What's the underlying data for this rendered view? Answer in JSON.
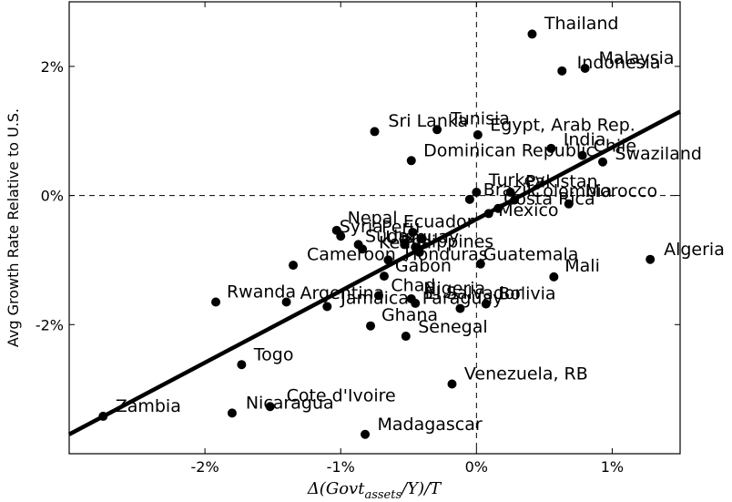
{
  "chart_data": {
    "type": "scatter",
    "xlabel": "Δ(Govt_assets/Y)/T",
    "xlabel_main": "Δ(Govt",
    "xlabel_sub": "assets",
    "xlabel_tail": "/Y)/T",
    "ylabel": "Avg Growth Rate Relative to U.S.",
    "xlim": [
      -3.0,
      1.5
    ],
    "ylim": [
      -4.0,
      3.0
    ],
    "x_ticks": [
      {
        "v": -2,
        "label": "-2%"
      },
      {
        "v": -1,
        "label": "-1%"
      },
      {
        "v": 0,
        "label": "0%"
      },
      {
        "v": 1,
        "label": "1%"
      }
    ],
    "y_ticks": [
      {
        "v": 2,
        "label": "2%"
      },
      {
        "v": 0,
        "label": "0%"
      },
      {
        "v": -2,
        "label": "-2%"
      }
    ],
    "reference_lines": {
      "x": 0,
      "y": 0,
      "style": "dashed"
    },
    "fit_line": [
      {
        "x": -3.0,
        "y": -3.7
      },
      {
        "x": 1.5,
        "y": 1.3
      }
    ],
    "points": [
      {
        "label": "Thailand",
        "x": 0.41,
        "y": 2.5
      },
      {
        "label": "Malaysia",
        "x": 0.8,
        "y": 1.97
      },
      {
        "label": "Indonesia",
        "x": 0.63,
        "y": 1.93
      },
      {
        "label": "Tunisia",
        "x": -0.29,
        "y": 1.02
      },
      {
        "label": "Sri Lanka",
        "x": -0.75,
        "y": 0.99
      },
      {
        "label": "Egypt, Arab Rep.",
        "x": 0.01,
        "y": 0.94
      },
      {
        "label": "India",
        "x": 0.55,
        "y": 0.73
      },
      {
        "label": "Chile",
        "x": 0.78,
        "y": 0.62
      },
      {
        "label": "Swaziland",
        "x": 0.93,
        "y": 0.52
      },
      {
        "label": "Dominican Republic",
        "x": -0.48,
        "y": 0.54
      },
      {
        "label": "Turkey",
        "x": 0.0,
        "y": 0.05
      },
      {
        "label": "Pakistan",
        "x": 0.25,
        "y": 0.05
      },
      {
        "label": "Brazil",
        "x": -0.05,
        "y": -0.06
      },
      {
        "label": "Colombia",
        "x": 0.28,
        "y": -0.07
      },
      {
        "label": "Morocco",
        "x": 0.68,
        "y": -0.13
      },
      {
        "label": "Costa Rica",
        "x": 0.16,
        "y": -0.2
      },
      {
        "label": "Mexico",
        "x": 0.09,
        "y": -0.28
      },
      {
        "label": "Nepal",
        "x": -1.03,
        "y": -0.54
      },
      {
        "label": "Ecuador",
        "x": -0.47,
        "y": -0.57
      },
      {
        "label": "Syria",
        "x": -1.0,
        "y": -0.63
      },
      {
        "label": "Peru",
        "x": -0.4,
        "y": -0.67
      },
      {
        "label": "Uruguay",
        "x": -0.53,
        "y": -0.76
      },
      {
        "label": "Philippines",
        "x": -0.45,
        "y": -0.8
      },
      {
        "label": "Sudan",
        "x": -0.87,
        "y": -0.76
      },
      {
        "label": "Honduras",
        "x": -0.84,
        "y": -0.83
      },
      {
        "label": "Kenya",
        "x": -0.42,
        "y": -0.88
      },
      {
        "label": "Cameroon",
        "x": -0.65,
        "y": -1.0
      },
      {
        "label": "Guatemala",
        "x": 0.03,
        "y": -1.06
      },
      {
        "label": "Gabon",
        "x": -1.35,
        "y": -1.08
      },
      {
        "label": "Mali",
        "x": 0.57,
        "y": -1.26
      },
      {
        "label": "Algeria",
        "x": 1.28,
        "y": -0.99
      },
      {
        "label": "Gabon",
        "x": -0.68,
        "y": -1.25
      },
      {
        "label": "Rwanda",
        "x": -1.92,
        "y": -1.65
      },
      {
        "label": "Argentina",
        "x": -1.4,
        "y": -1.65
      },
      {
        "label": "Jamaica",
        "x": -1.1,
        "y": -1.72
      },
      {
        "label": "Chad",
        "x": -0.72,
        "y": -1.55
      },
      {
        "label": "Nigeria",
        "x": -0.48,
        "y": -1.6
      },
      {
        "label": "El Salvador",
        "x": -0.45,
        "y": -1.67
      },
      {
        "label": "Paraguay",
        "x": -0.12,
        "y": -1.75
      },
      {
        "label": "Bolivia",
        "x": 0.07,
        "y": -1.68
      },
      {
        "label": "Ghana",
        "x": -0.78,
        "y": -2.02
      },
      {
        "label": "Senegal",
        "x": -0.52,
        "y": -2.18
      },
      {
        "label": "Togo",
        "x": -1.73,
        "y": -2.62
      },
      {
        "label": "Venezuela, RB",
        "x": -0.18,
        "y": -2.92
      },
      {
        "label": "Cote d'Ivoire",
        "x": -1.52,
        "y": -3.27
      },
      {
        "label": "Nicaragua",
        "x": -1.8,
        "y": -3.37
      },
      {
        "label": "Zambia",
        "x": -2.75,
        "y": -3.42
      },
      {
        "label": "Madagascar",
        "x": -0.82,
        "y": -3.7
      }
    ],
    "labels": [
      {
        "text": "Thailand",
        "x": 0.5,
        "y": 2.58
      },
      {
        "text": "Malaysia",
        "x": 0.9,
        "y": 2.04
      },
      {
        "text": "Indonesia",
        "x": 0.74,
        "y": 1.97
      },
      {
        "text": "Tunisia",
        "x": -0.19,
        "y": 1.1
      },
      {
        "text": "Sri Lanka",
        "x": -0.65,
        "y": 1.07
      },
      {
        "text": "Egypt, Arab Rep.",
        "x": 0.1,
        "y": 1.0
      },
      {
        "text": "India",
        "x": 0.64,
        "y": 0.78
      },
      {
        "text": "Chile",
        "x": 0.86,
        "y": 0.68
      },
      {
        "text": "Swaziland",
        "x": 1.02,
        "y": 0.56
      },
      {
        "text": "Dominican Republic",
        "x": -0.39,
        "y": 0.61
      },
      {
        "text": "Turkey",
        "x": 0.09,
        "y": 0.15
      },
      {
        "text": "Pakistan",
        "x": 0.36,
        "y": 0.13
      },
      {
        "text": "Brazil",
        "x": 0.05,
        "y": 0.0
      },
      {
        "text": "Colombia",
        "x": 0.4,
        "y": -0.02
      },
      {
        "text": "Morocco",
        "x": 0.8,
        "y": -0.02
      },
      {
        "text": "Costa Rica",
        "x": 0.2,
        "y": -0.14
      },
      {
        "text": "Mexico",
        "x": 0.16,
        "y": -0.32
      },
      {
        "text": "Nepal",
        "x": -0.95,
        "y": -0.44
      },
      {
        "text": "Ecuador",
        "x": -0.54,
        "y": -0.49
      },
      {
        "text": "Syria",
        "x": -1.01,
        "y": -0.57
      },
      {
        "text": "Peru",
        "x": -0.7,
        "y": -0.58
      },
      {
        "text": "Uruguay",
        "x": -0.67,
        "y": -0.73
      },
      {
        "text": "Philippines",
        "x": -0.56,
        "y": -0.8
      },
      {
        "text": "Sudan",
        "x": -0.82,
        "y": -0.72
      },
      {
        "text": "Honduras",
        "x": -0.53,
        "y": -1.0
      },
      {
        "text": "Kenya",
        "x": -0.72,
        "y": -0.82
      },
      {
        "text": "Cameroon",
        "x": -1.25,
        "y": -1.0
      },
      {
        "text": "Guatemala",
        "x": 0.05,
        "y": -1.0
      },
      {
        "text": "Gabon",
        "x": -0.6,
        "y": -1.18
      },
      {
        "text": "Mali",
        "x": 0.65,
        "y": -1.18
      },
      {
        "text": "Algeria",
        "x": 1.38,
        "y": -0.92
      },
      {
        "text": "Rwanda",
        "x": -1.84,
        "y": -1.58
      },
      {
        "text": "Argentina",
        "x": -1.3,
        "y": -1.6
      },
      {
        "text": "Jamaica",
        "x": -1.0,
        "y": -1.68
      },
      {
        "text": "Chad",
        "x": -0.63,
        "y": -1.48
      },
      {
        "text": "Nigeria",
        "x": -0.39,
        "y": -1.53
      },
      {
        "text": "El Salvador",
        "x": -0.38,
        "y": -1.6
      },
      {
        "text": "Paraguay",
        "x": -0.4,
        "y": -1.68
      },
      {
        "text": "Bolivia",
        "x": 0.16,
        "y": -1.61
      },
      {
        "text": "Ghana",
        "x": -0.7,
        "y": -1.94
      },
      {
        "text": "Senegal",
        "x": -0.43,
        "y": -2.12
      },
      {
        "text": "Togo",
        "x": -1.64,
        "y": -2.55
      },
      {
        "text": "Venezuela, RB",
        "x": -0.09,
        "y": -2.85
      },
      {
        "text": "Cote d'Ivoire",
        "x": -1.4,
        "y": -3.19
      },
      {
        "text": "Nicaragua",
        "x": -1.7,
        "y": -3.3
      },
      {
        "text": "Zambia",
        "x": -2.66,
        "y": -3.35
      },
      {
        "text": "Madagascar",
        "x": -0.73,
        "y": -3.63
      }
    ]
  }
}
